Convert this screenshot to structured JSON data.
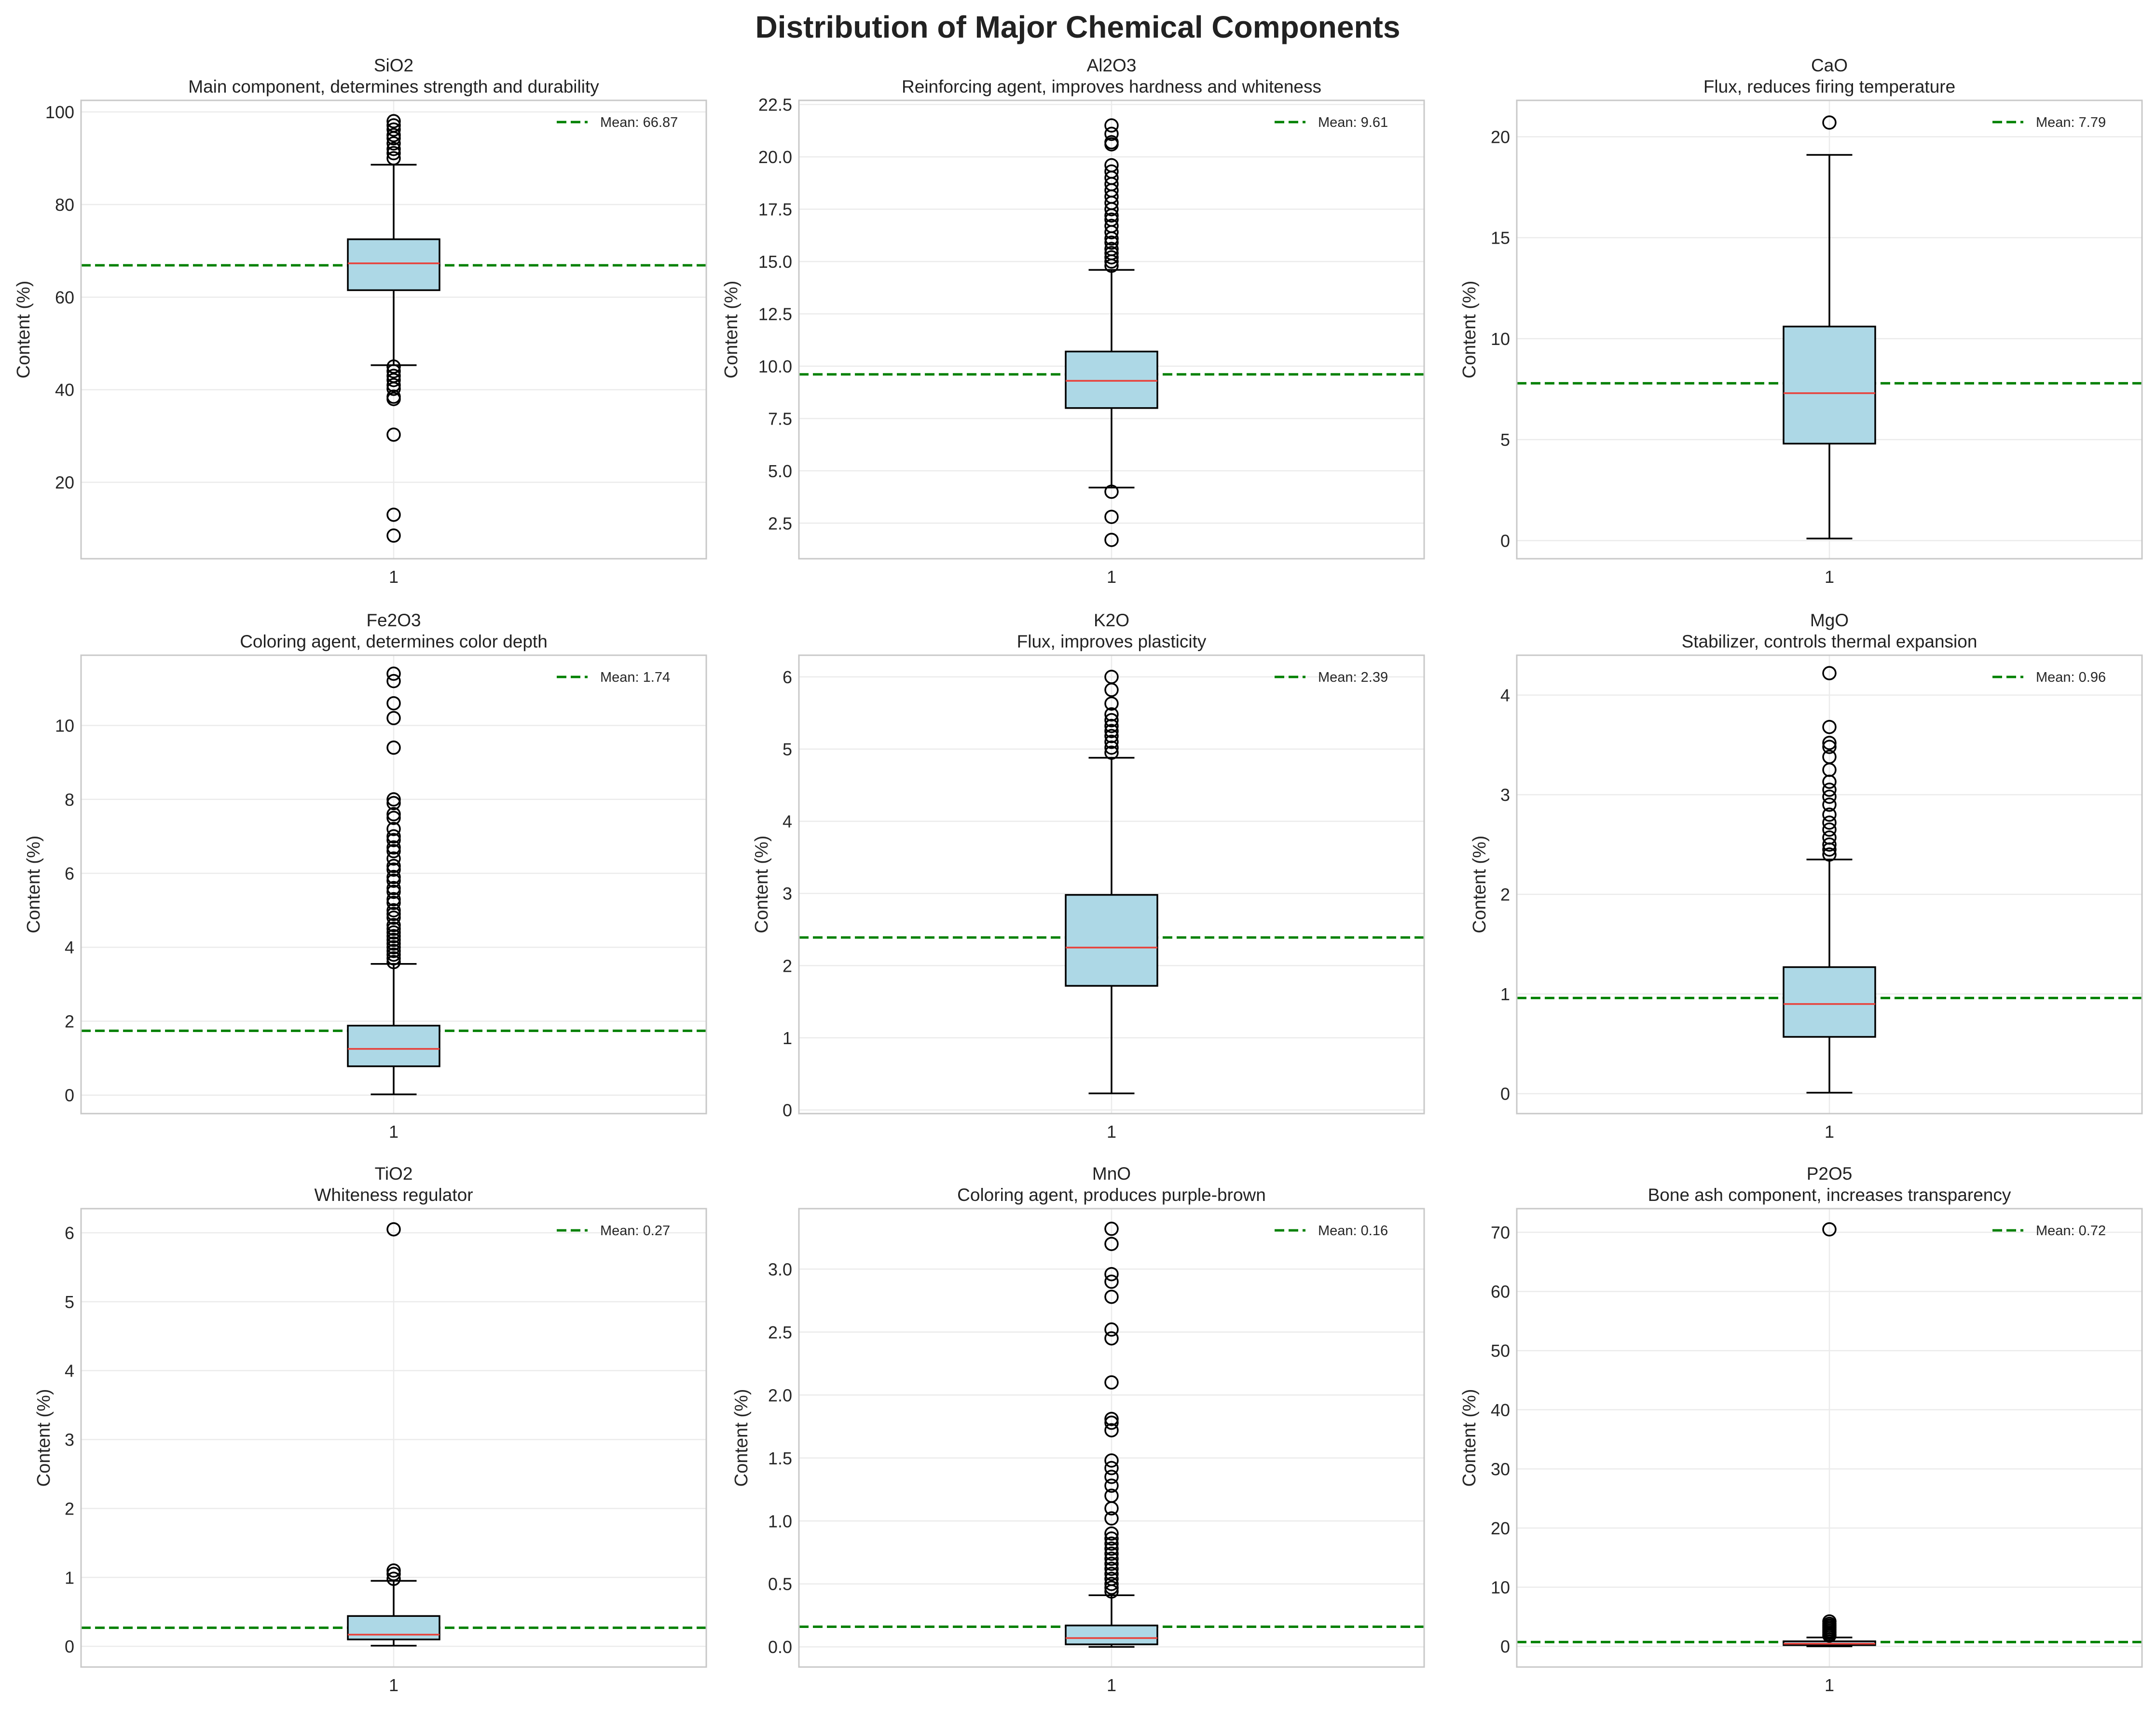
{
  "figure": {
    "title": "Distribution of Major Chemical Components"
  },
  "colors": {
    "box_fill": "#add8e6",
    "median": "#e8413a",
    "mean_line": "#008000",
    "grid": "#ebebeb",
    "axes_edge": "#c8c8c8",
    "whisker": "#000000"
  },
  "chart_data": [
    {
      "type": "box",
      "component": "SiO2",
      "description": "Main component, determines strength and durability",
      "ylabel": "Content (%)",
      "xtick": "1",
      "ylim": [
        3.5,
        102.5
      ],
      "yticks": [
        20,
        40,
        60,
        80,
        100
      ],
      "ytick_labels": [
        "20",
        "40",
        "60",
        "80",
        "100"
      ],
      "q1": 61.5,
      "median": 67.3,
      "q3": 72.5,
      "whisker_low": 45.3,
      "whisker_high": 88.6,
      "mean": 66.87,
      "mean_label": "Mean: 66.87",
      "outliers": [
        98.0,
        97.1,
        96.2,
        95.0,
        94.3,
        93.2,
        92.0,
        91.1,
        90.0,
        45.0,
        44.0,
        43.0,
        42.1,
        41.0,
        40.2,
        38.5,
        38.0,
        30.3,
        13.0,
        8.5
      ]
    },
    {
      "type": "box",
      "component": "Al2O3",
      "description": "Reinforcing agent, improves hardness and whiteness",
      "ylabel": "Content (%)",
      "xtick": "1",
      "ylim": [
        0.8,
        22.7
      ],
      "yticks": [
        2.5,
        5.0,
        7.5,
        10.0,
        12.5,
        15.0,
        17.5,
        20.0,
        22.5
      ],
      "ytick_labels": [
        "2.5",
        "5.0",
        "7.5",
        "10.0",
        "12.5",
        "15.0",
        "17.5",
        "20.0",
        "22.5"
      ],
      "q1": 8.0,
      "median": 9.3,
      "q3": 10.7,
      "whisker_low": 4.2,
      "whisker_high": 14.6,
      "mean": 9.61,
      "mean_label": "Mean: 9.61",
      "outliers": [
        21.5,
        21.1,
        20.7,
        20.6,
        19.6,
        19.3,
        19.0,
        18.7,
        18.4,
        18.1,
        17.8,
        17.5,
        17.2,
        17.0,
        16.7,
        16.4,
        16.1,
        15.9,
        15.6,
        15.4,
        15.2,
        15.0,
        14.8,
        4.0,
        2.8,
        1.7
      ]
    },
    {
      "type": "box",
      "component": "CaO",
      "description": "Flux, reduces firing temperature",
      "ylabel": "Content (%)",
      "xtick": "1",
      "ylim": [
        -0.9,
        21.8
      ],
      "yticks": [
        0,
        5,
        10,
        15,
        20
      ],
      "ytick_labels": [
        "0",
        "5",
        "10",
        "15",
        "20"
      ],
      "q1": 4.8,
      "median": 7.3,
      "q3": 10.6,
      "whisker_low": 0.1,
      "whisker_high": 19.1,
      "mean": 7.79,
      "mean_label": "Mean: 7.79",
      "outliers": [
        20.7
      ]
    },
    {
      "type": "box",
      "component": "Fe2O3",
      "description": "Coloring agent, determines color depth",
      "ylabel": "Content (%)",
      "xtick": "1",
      "ylim": [
        -0.5,
        11.9
      ],
      "yticks": [
        0,
        2,
        4,
        6,
        8,
        10
      ],
      "ytick_labels": [
        "0",
        "2",
        "4",
        "6",
        "8",
        "10"
      ],
      "q1": 0.78,
      "median": 1.25,
      "q3": 1.88,
      "whisker_low": 0.02,
      "whisker_high": 3.55,
      "mean": 1.74,
      "mean_label": "Mean: 1.74",
      "outliers": [
        11.4,
        11.2,
        10.6,
        10.2,
        9.4,
        8.0,
        7.9,
        7.6,
        7.5,
        7.2,
        7.0,
        6.9,
        6.7,
        6.6,
        6.4,
        6.2,
        6.1,
        5.9,
        5.8,
        5.6,
        5.5,
        5.3,
        5.2,
        5.0,
        4.9,
        4.8,
        4.6,
        4.5,
        4.4,
        4.3,
        4.2,
        4.1,
        4.0,
        3.9,
        3.8,
        3.7,
        3.6
      ]
    },
    {
      "type": "box",
      "component": "K2O",
      "description": "Flux, improves plasticity",
      "ylabel": "Content (%)",
      "xtick": "1",
      "ylim": [
        -0.05,
        6.3
      ],
      "yticks": [
        0,
        1,
        2,
        3,
        4,
        5,
        6
      ],
      "ytick_labels": [
        "0",
        "1",
        "2",
        "3",
        "4",
        "5",
        "6"
      ],
      "q1": 1.72,
      "median": 2.25,
      "q3": 2.98,
      "whisker_low": 0.23,
      "whisker_high": 4.88,
      "mean": 2.39,
      "mean_label": "Mean: 2.39",
      "outliers": [
        6.0,
        5.82,
        5.63,
        5.48,
        5.4,
        5.32,
        5.25,
        5.18,
        5.1,
        5.02,
        4.95
      ]
    },
    {
      "type": "box",
      "component": "MgO",
      "description": "Stabilizer, controls thermal expansion",
      "ylabel": "Content (%)",
      "xtick": "1",
      "ylim": [
        -0.2,
        4.4
      ],
      "yticks": [
        0,
        1,
        2,
        3,
        4
      ],
      "ytick_labels": [
        "0",
        "1",
        "2",
        "3",
        "4"
      ],
      "q1": 0.57,
      "median": 0.9,
      "q3": 1.27,
      "whisker_low": 0.01,
      "whisker_high": 2.35,
      "mean": 0.96,
      "mean_label": "Mean: 0.96",
      "outliers": [
        4.22,
        3.68,
        3.52,
        3.48,
        3.38,
        3.25,
        3.13,
        3.05,
        2.98,
        2.9,
        2.8,
        2.72,
        2.65,
        2.57,
        2.5,
        2.45,
        2.4
      ]
    },
    {
      "type": "box",
      "component": "TiO2",
      "description": "Whiteness regulator",
      "ylabel": "Content (%)",
      "xtick": "1",
      "ylim": [
        -0.3,
        6.35
      ],
      "yticks": [
        0,
        1,
        2,
        3,
        4,
        5,
        6
      ],
      "ytick_labels": [
        "0",
        "1",
        "2",
        "3",
        "4",
        "5",
        "6"
      ],
      "q1": 0.1,
      "median": 0.17,
      "q3": 0.44,
      "whisker_low": 0.01,
      "whisker_high": 0.95,
      "mean": 0.27,
      "mean_label": "Mean: 0.27",
      "outliers": [
        6.05,
        1.1,
        1.05,
        0.98
      ]
    },
    {
      "type": "box",
      "component": "MnO",
      "description": "Coloring agent, produces purple-brown",
      "ylabel": "Content (%)",
      "xtick": "1",
      "ylim": [
        -0.16,
        3.48
      ],
      "yticks": [
        0.0,
        0.5,
        1.0,
        1.5,
        2.0,
        2.5,
        3.0
      ],
      "ytick_labels": [
        "0.0",
        "0.5",
        "1.0",
        "1.5",
        "2.0",
        "2.5",
        "3.0"
      ],
      "q1": 0.02,
      "median": 0.07,
      "q3": 0.17,
      "whisker_low": 0.0,
      "whisker_high": 0.41,
      "mean": 0.16,
      "mean_label": "Mean: 0.16",
      "outliers": [
        3.32,
        3.2,
        2.96,
        2.9,
        2.78,
        2.52,
        2.45,
        2.1,
        1.81,
        1.78,
        1.72,
        1.48,
        1.42,
        1.35,
        1.28,
        1.2,
        1.1,
        1.02,
        0.9,
        0.86,
        0.82,
        0.78,
        0.74,
        0.7,
        0.66,
        0.62,
        0.58,
        0.54,
        0.5,
        0.47,
        0.44
      ]
    },
    {
      "type": "box",
      "component": "P2O5",
      "description": "Bone ash component, increases transparency",
      "ylabel": "Content (%)",
      "xtick": "1",
      "ylim": [
        -3.5,
        74.0
      ],
      "yticks": [
        0,
        10,
        20,
        30,
        40,
        50,
        60,
        70
      ],
      "ytick_labels": [
        "0",
        "10",
        "20",
        "30",
        "40",
        "50",
        "60",
        "70"
      ],
      "q1": 0.2,
      "median": 0.45,
      "q3": 0.85,
      "whisker_low": 0.0,
      "whisker_high": 1.5,
      "mean": 0.72,
      "mean_label": "Mean: 0.72",
      "outliers": [
        70.5,
        4.2,
        3.8,
        3.5,
        3.2,
        2.9,
        2.6,
        2.3,
        2.0,
        1.8
      ]
    }
  ]
}
